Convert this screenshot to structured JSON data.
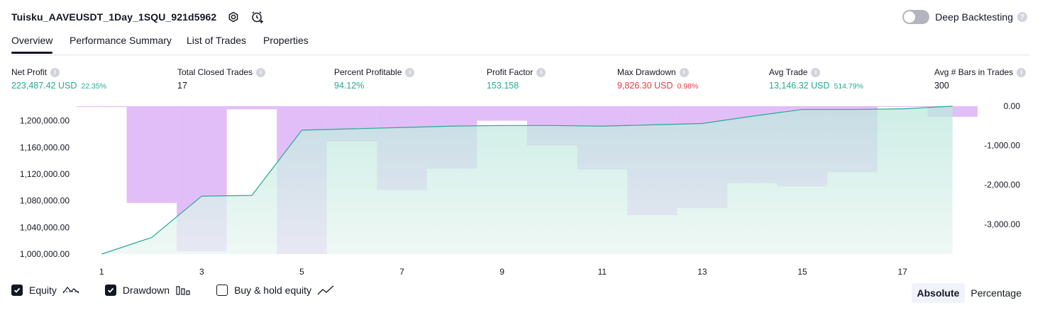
{
  "header": {
    "title": "Tuisku_AAVEUSDT_1Day_1SQU_921d5962",
    "settings_icon": "gear-icon",
    "alert_icon": "add-alert-icon"
  },
  "deep_backtesting": {
    "label": "Deep Backtesting",
    "enabled": false,
    "help": "?"
  },
  "tabs": [
    {
      "label": "Overview",
      "active": true
    },
    {
      "label": "Performance Summary",
      "active": false
    },
    {
      "label": "List of Trades",
      "active": false
    },
    {
      "label": "Properties",
      "active": false
    }
  ],
  "metrics": [
    {
      "label": "Net Profit",
      "value": "223,487.42 USD",
      "pct": "22.35%",
      "tone": "pos"
    },
    {
      "label": "Total Closed Trades",
      "value": "17",
      "pct": "",
      "tone": "neutral"
    },
    {
      "label": "Percent Profitable",
      "value": "94.12%",
      "pct": "",
      "tone": "pos"
    },
    {
      "label": "Profit Factor",
      "value": "153.158",
      "pct": "",
      "tone": "pos"
    },
    {
      "label": "Max Drawdown",
      "value": "9,826.30 USD",
      "pct": "0.98%",
      "tone": "neg"
    },
    {
      "label": "Avg Trade",
      "value": "13,146.32 USD",
      "pct": "514.79%",
      "tone": "pos"
    },
    {
      "label": "Avg # Bars in Trades",
      "value": "300",
      "pct": "",
      "tone": "neutral"
    }
  ],
  "colors": {
    "positive": "#22ab94",
    "negative": "#f23645",
    "equity_line": "#22ab94",
    "drawdown_bar": "#ce93f4"
  },
  "chart_data": {
    "type": "area",
    "x_ticks": [
      "1",
      "3",
      "5",
      "7",
      "9",
      "11",
      "13",
      "15",
      "17"
    ],
    "y_left_ticks": [
      "1,200,000.00",
      "1,160,000.00",
      "1,120,000.00",
      "1,080,000.00",
      "1,040,000.00",
      "1,000,000.00"
    ],
    "y_right_ticks": [
      "0.00",
      "-1,000.00",
      "-2,000.00",
      "-3,000.00"
    ],
    "ylim_equity": [
      1000000,
      1222000
    ],
    "ylim_drawdown": [
      -3760,
      0
    ],
    "series": [
      {
        "name": "Equity",
        "x": [
          1,
          2,
          3,
          4,
          5,
          6,
          7,
          8,
          9,
          10,
          11,
          12,
          13,
          14,
          15,
          16,
          17,
          18
        ],
        "values": [
          1000000,
          1025000,
          1087000,
          1088000,
          1186000,
          1188000,
          1190000,
          1192000,
          1193000,
          1193000,
          1192000,
          1194000,
          1196000,
          1207000,
          1217000,
          1217000,
          1218000,
          1222000
        ]
      },
      {
        "name": "Drawdown",
        "x": [
          1,
          2,
          3,
          4,
          5,
          6,
          7,
          8,
          9,
          10,
          11,
          12,
          13,
          14,
          15,
          16,
          17,
          18
        ],
        "values": [
          -20,
          -2460,
          -3690,
          -80,
          -3760,
          -900,
          -2130,
          -1590,
          -370,
          -1000,
          -1610,
          -2770,
          -2590,
          -1960,
          -2040,
          -1680,
          0,
          -270
        ]
      }
    ]
  },
  "legend": [
    {
      "label": "Equity",
      "checked": true,
      "icon": "equity-line-icon"
    },
    {
      "label": "Drawdown",
      "checked": true,
      "icon": "bars-icon"
    },
    {
      "label": "Buy & hold equity",
      "checked": false,
      "icon": "trend-line-icon"
    }
  ],
  "modes": [
    {
      "label": "Absolute",
      "active": true
    },
    {
      "label": "Percentage",
      "active": false
    }
  ]
}
